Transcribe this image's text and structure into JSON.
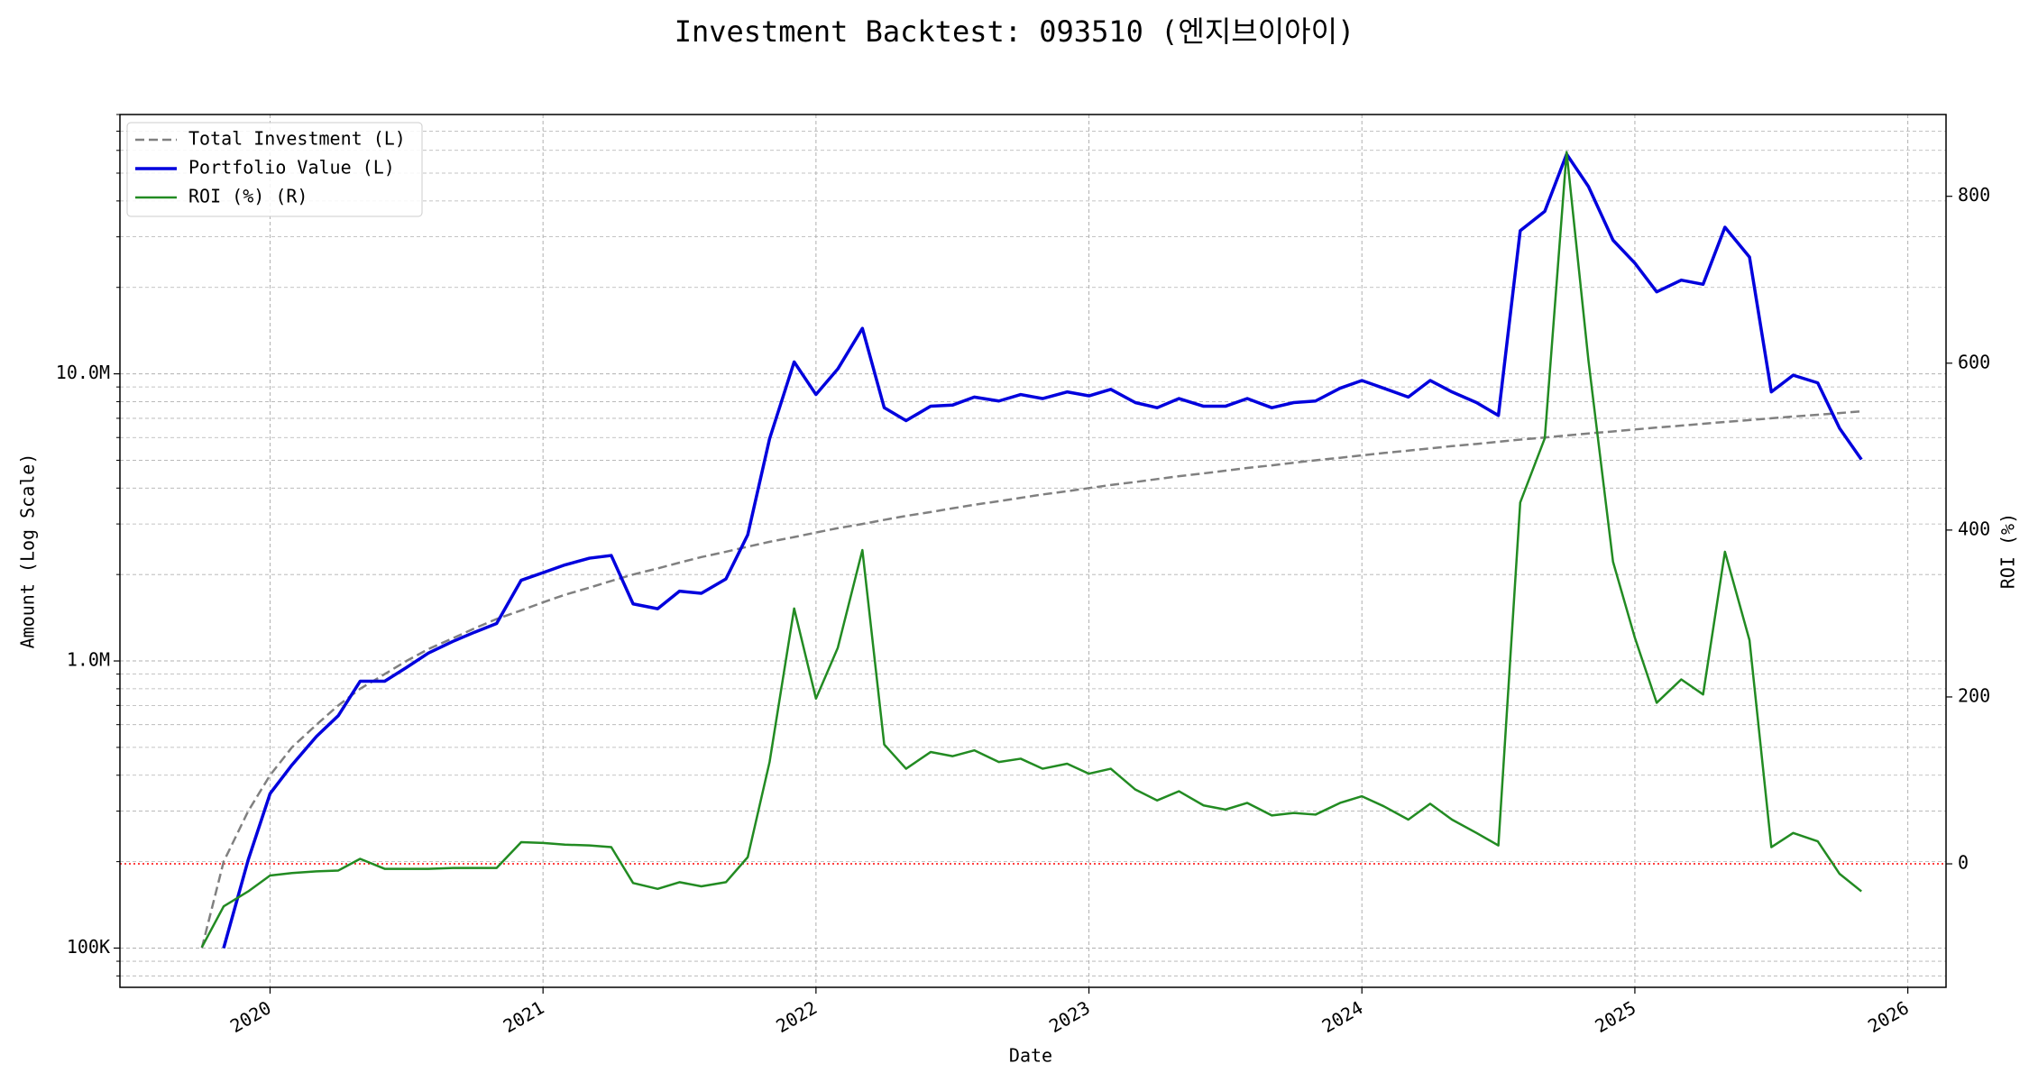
{
  "chart_data": {
    "type": "line",
    "title": "Investment Backtest: 093510 (엔지브이아이)",
    "xlabel": "Date",
    "ylabel": "Amount (Log Scale)",
    "y2label": "ROI (%)",
    "ylabel_color": "#0000cc",
    "y2label_color": "#228b22",
    "ylog": true,
    "grid": true,
    "minor_grid": true,
    "legend": "upper left",
    "x": [
      2019.75,
      2019.83,
      2019.92,
      2020.0,
      2020.08,
      2020.17,
      2020.25,
      2020.33,
      2020.42,
      2020.5,
      2020.58,
      2020.67,
      2020.75,
      2020.83,
      2020.92,
      2021.0,
      2021.08,
      2021.17,
      2021.25,
      2021.33,
      2021.42,
      2021.5,
      2021.58,
      2021.67,
      2021.75,
      2021.83,
      2021.92,
      2022.0,
      2022.08,
      2022.17,
      2022.25,
      2022.33,
      2022.42,
      2022.5,
      2022.58,
      2022.67,
      2022.75,
      2022.83,
      2022.92,
      2023.0,
      2023.08,
      2023.17,
      2023.25,
      2023.33,
      2023.42,
      2023.5,
      2023.58,
      2023.67,
      2023.75,
      2023.83,
      2023.92,
      2024.0,
      2024.08,
      2024.17,
      2024.25,
      2024.33,
      2024.42,
      2024.5,
      2024.58,
      2024.67,
      2024.75,
      2024.83,
      2024.92,
      2025.0,
      2025.08,
      2025.17,
      2025.25,
      2025.33,
      2025.42,
      2025.5,
      2025.58,
      2025.67,
      2025.75,
      2025.83
    ],
    "series": [
      {
        "name": "Total Investment (L)",
        "color": "#808080",
        "dash": true,
        "line_width": 2.5,
        "values": [
          100000,
          200000,
          300000,
          400000,
          500000,
          600000,
          700000,
          800000,
          900000,
          1000000,
          1100000,
          1200000,
          1300000,
          1400000,
          1500000,
          1600000,
          1700000,
          1800000,
          1900000,
          2000000,
          2100000,
          2200000,
          2300000,
          2400000,
          2500000,
          2600000,
          2700000,
          2800000,
          2900000,
          3000000,
          3100000,
          3200000,
          3300000,
          3400000,
          3500000,
          3600000,
          3700000,
          3800000,
          3900000,
          4000000,
          4100000,
          4200000,
          4300000,
          4400000,
          4500000,
          4600000,
          4700000,
          4800000,
          4900000,
          5000000,
          5100000,
          5200000,
          5300000,
          5400000,
          5500000,
          5600000,
          5700000,
          5800000,
          5900000,
          6000000,
          6100000,
          6200000,
          6300000,
          6400000,
          6500000,
          6600000,
          6700000,
          6800000,
          6900000,
          7000000,
          7100000,
          7200000,
          7300000,
          7400000
        ]
      },
      {
        "name": "Portfolio Value (L)",
        "color": "#0000dd",
        "line_width": 3.5,
        "values": [
          null,
          100000,
          203000,
          345000,
          434000,
          546000,
          645000,
          850000,
          850000,
          949000,
          1065000,
          1170000,
          1260000,
          1350000,
          1910000,
          2030000,
          2160000,
          2280000,
          2330000,
          1580000,
          1520000,
          1750000,
          1720000,
          1930000,
          2750000,
          5940000,
          11000000,
          8470000,
          10400000,
          14400000,
          7620000,
          6870000,
          7710000,
          7780000,
          8300000,
          8040000,
          8470000,
          8200000,
          8650000,
          8380000,
          8830000,
          7940000,
          7620000,
          8200000,
          7710000,
          7710000,
          8200000,
          7620000,
          7940000,
          8040000,
          8910000,
          9480000,
          8910000,
          8300000,
          9480000,
          8650000,
          7940000,
          7160000,
          31500000,
          36800000,
          58200000,
          44900000,
          29200000,
          24300000,
          19300000,
          21200000,
          20500000,
          32400000,
          25500000,
          8650000,
          9890000,
          9300000,
          6460000,
          5030000
        ]
      },
      {
        "name": "ROI (%) (R)",
        "color": "#228b22",
        "axis": "y2",
        "line_width": 2.5,
        "values": [
          -100,
          -51,
          -33,
          -14,
          -11,
          -9,
          -8,
          6,
          -6,
          -6,
          -6,
          -5,
          -5,
          -5,
          26,
          25,
          23,
          22,
          20,
          -23,
          -30,
          -22,
          -27,
          -22,
          8,
          122,
          306,
          198,
          259,
          376,
          143,
          114,
          134,
          129,
          136,
          122,
          126,
          114,
          120,
          108,
          114,
          89,
          76,
          87,
          70,
          65,
          73,
          58,
          61,
          59,
          73,
          81,
          69,
          53,
          72,
          53,
          37,
          22,
          433,
          510,
          853,
          603,
          362,
          271,
          193,
          221,
          203,
          374,
          268,
          20,
          37,
          27,
          -12,
          -33
        ]
      }
    ],
    "ref_line": {
      "value": 0,
      "axis": "y2",
      "color": "#ff0000"
    },
    "xlim": [
      2019.45,
      2026.14
    ],
    "xticks": [
      2020,
      2021,
      2022,
      2023,
      2024,
      2025,
      2026
    ],
    "ylim": [
      73000,
      80000000
    ],
    "yticks": [
      {
        "value": 100000,
        "label": "100K"
      },
      {
        "value": 1000000,
        "label": "1.0M"
      },
      {
        "value": 10000000,
        "label": "10.0M"
      }
    ],
    "y2lim": [
      -148,
      898
    ],
    "y2ticks": [
      0,
      200,
      400,
      600,
      800
    ]
  }
}
